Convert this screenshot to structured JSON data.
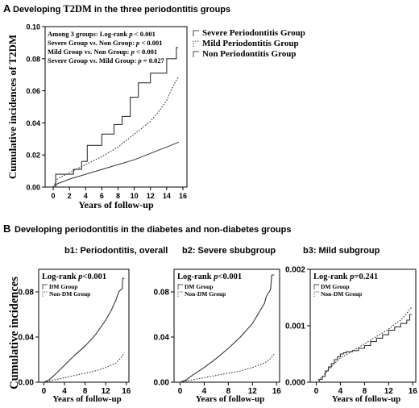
{
  "panel_a": {
    "letter": "A",
    "heading_prefix": "Developing",
    "heading_t2dm": "T2DM",
    "heading_suffix": "in the three periodontitis groups"
  },
  "panel_b": {
    "letter": "B",
    "heading": "Developing periodontitis in the diabetes and non-diabetes groups",
    "shared_ylabel": "Cumulative incidences"
  },
  "chart_data": [
    {
      "id": "A",
      "type": "line",
      "ylabel": "Cumulative incidences of T2DM",
      "xlabel": "Years of follow-up",
      "xlim": [
        -1,
        16.5
      ],
      "ylim": [
        0,
        0.1
      ],
      "xticks": [
        0,
        2,
        4,
        6,
        8,
        10,
        12,
        14,
        16
      ],
      "yticks": [
        "0.00",
        "0.02",
        "0.04",
        "0.06",
        "0.08",
        "0.10"
      ],
      "ytick_values": [
        0,
        0.02,
        0.04,
        0.06,
        0.08,
        0.1
      ],
      "annotations": [
        "Among 3 groups: Log-rank p < 0.001",
        "Severe Group vs. Non Group: p < 0.001",
        "Mild Group vs. Non Group: p < 0.001",
        "Severe Group vs. Mild Group: p = 0.027"
      ],
      "legend": [
        "Severe Periodontitis Group",
        "Mild Periodontitis Group",
        "Non Periodontitis Group"
      ],
      "series": [
        {
          "name": "Severe Periodontitis Group",
          "style": "solid-step",
          "x": [
            0,
            0.3,
            2.5,
            3.5,
            4.2,
            6,
            7.5,
            8.5,
            9.5,
            10.5,
            12,
            14,
            15.2,
            15.4
          ],
          "y": [
            0,
            0.008,
            0.011,
            0.016,
            0.026,
            0.033,
            0.039,
            0.044,
            0.056,
            0.065,
            0.071,
            0.08,
            0.087,
            0.087
          ]
        },
        {
          "name": "Mild Periodontitis Group",
          "style": "dotted",
          "x": [
            0,
            0.5,
            2,
            4,
            6,
            8,
            10,
            12,
            13,
            14,
            14.5,
            15,
            15.5
          ],
          "y": [
            0,
            0.005,
            0.009,
            0.014,
            0.019,
            0.025,
            0.033,
            0.041,
            0.047,
            0.054,
            0.06,
            0.065,
            0.069
          ]
        },
        {
          "name": "Non Periodontitis Group",
          "style": "solid-fine",
          "x": [
            0,
            0.5,
            2,
            4,
            6,
            8,
            10,
            12,
            13,
            14,
            15,
            15.5
          ],
          "y": [
            0,
            0.002,
            0.005,
            0.008,
            0.011,
            0.014,
            0.017,
            0.021,
            0.023,
            0.025,
            0.027,
            0.028
          ]
        }
      ]
    },
    {
      "id": "b1",
      "type": "line",
      "title": "b1: Periodontitis, overall",
      "xlabel": "Years of follow-up",
      "xlim": [
        -1,
        16.5
      ],
      "ylim": [
        0,
        0.1
      ],
      "xticks": [
        0,
        4,
        8,
        12,
        16
      ],
      "yticks": [
        "0.00",
        "0.04",
        "0.08"
      ],
      "ytick_values": [
        0,
        0.04,
        0.08
      ],
      "annotation_prefix": "Log-rank",
      "annotation_p": "p",
      "annotation_value": "<0.001",
      "legend": [
        "DM Group",
        "Non-DM Group"
      ],
      "series": [
        {
          "name": "DM Group",
          "style": "solid",
          "x": [
            0,
            1,
            2,
            4,
            6,
            8,
            10,
            12,
            13,
            14,
            14.5,
            15.2,
            15.3,
            15.6
          ],
          "y": [
            0,
            0.002,
            0.006,
            0.015,
            0.024,
            0.032,
            0.042,
            0.055,
            0.063,
            0.073,
            0.08,
            0.083,
            0.092,
            0.092
          ]
        },
        {
          "name": "Non-DM Group",
          "style": "dotted",
          "x": [
            0,
            2,
            4,
            6,
            8,
            10,
            12,
            14,
            15,
            15.6
          ],
          "y": [
            0,
            0.002,
            0.004,
            0.006,
            0.008,
            0.01,
            0.013,
            0.017,
            0.022,
            0.026
          ]
        }
      ]
    },
    {
      "id": "b2",
      "type": "line",
      "title": "b2: Severe sbubgroup",
      "xlabel": "Years of follow-up",
      "xlim": [
        -1,
        16.5
      ],
      "ylim": [
        0,
        0.1
      ],
      "xticks": [
        0,
        4,
        8,
        12,
        16
      ],
      "yticks": [
        "0.00",
        "0.04",
        "0.08"
      ],
      "ytick_values": [
        0,
        0.04,
        0.08
      ],
      "annotation_prefix": "Log-rank",
      "annotation_p": "p",
      "annotation_value": "<0.001",
      "legend": [
        "DM Group",
        "Non-DM Group"
      ],
      "series": [
        {
          "name": "DM Group",
          "style": "solid",
          "x": [
            0,
            1,
            2,
            4,
            6,
            8,
            10,
            12,
            13,
            14,
            14.3,
            15,
            15.2,
            15.6
          ],
          "y": [
            0,
            0.002,
            0.006,
            0.013,
            0.021,
            0.03,
            0.04,
            0.052,
            0.061,
            0.07,
            0.076,
            0.082,
            0.095,
            0.095
          ]
        },
        {
          "name": "Non-DM Group",
          "style": "dotted",
          "x": [
            0,
            2,
            4,
            6,
            8,
            10,
            12,
            14,
            15,
            15.6
          ],
          "y": [
            0,
            0.002,
            0.004,
            0.006,
            0.008,
            0.01,
            0.013,
            0.017,
            0.021,
            0.025
          ]
        }
      ]
    },
    {
      "id": "b3",
      "type": "line",
      "title": "b3: Mild subgroup",
      "xlabel": "Years of follow-up",
      "xlim": [
        -1,
        16.5
      ],
      "ylim": [
        0,
        0.002
      ],
      "xticks": [
        0,
        4,
        8,
        12,
        16
      ],
      "yticks": [
        "0.000",
        "0.001",
        "0.002"
      ],
      "ytick_values": [
        0,
        0.001,
        0.002
      ],
      "annotation_prefix": "Log-rank",
      "annotation_p": "p",
      "annotation_value": "=0.241",
      "legend": [
        "DM Group",
        "Non-DM Group"
      ],
      "series": [
        {
          "name": "DM Group",
          "style": "solid-step",
          "x": [
            0,
            0.5,
            1,
            1.5,
            2,
            2.5,
            3,
            3.5,
            4,
            4.5,
            5,
            6,
            7,
            8,
            9,
            10,
            11,
            12,
            13,
            14,
            15,
            15.5,
            15.8
          ],
          "y": [
            0,
            5e-05,
            0.0001,
            0.0002,
            0.00027,
            0.00033,
            0.0004,
            0.00045,
            0.0005,
            0.00052,
            0.00054,
            0.00056,
            0.0006,
            0.00065,
            0.00072,
            0.00078,
            0.00084,
            0.00092,
            0.00098,
            0.00104,
            0.0011,
            0.0012,
            0.0012
          ]
        },
        {
          "name": "Non-DM Group",
          "style": "dotted",
          "x": [
            0,
            1,
            2,
            3,
            4,
            6,
            8,
            10,
            12,
            13,
            14,
            15,
            15.8
          ],
          "y": [
            0,
            0.0001,
            0.00022,
            0.00033,
            0.00043,
            0.00055,
            0.00068,
            0.00081,
            0.00094,
            0.00103,
            0.0011,
            0.00122,
            0.00133
          ]
        }
      ]
    }
  ]
}
